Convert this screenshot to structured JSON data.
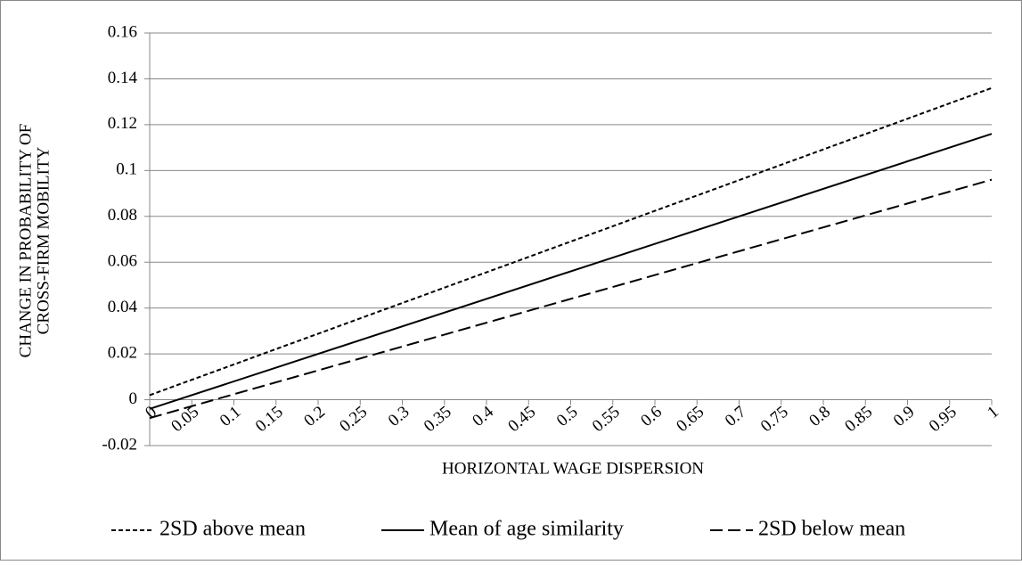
{
  "chart_data": {
    "type": "line",
    "xlabel": "HORIZONTAL WAGE DISPERSION",
    "ylabel": [
      "CHANGE IN PROBABILITY OF",
      "CROSS-FIRM MOBILITY"
    ],
    "x": [
      0,
      1
    ],
    "series": [
      {
        "name": "2SD above mean",
        "color": "#000000",
        "style": "dotted",
        "values": [
          0.002,
          0.136
        ]
      },
      {
        "name": "Mean of age similarity",
        "color": "#000000",
        "style": "solid",
        "values": [
          -0.004,
          0.116
        ]
      },
      {
        "name": "2SD below mean",
        "color": "#000000",
        "style": "dashed",
        "values": [
          -0.008,
          0.096
        ]
      }
    ],
    "xlim": [
      0,
      1
    ],
    "xticks": [
      0,
      0.05,
      0.1,
      0.15,
      0.2,
      0.25,
      0.3,
      0.35,
      0.4,
      0.45,
      0.5,
      0.55,
      0.6,
      0.65,
      0.7,
      0.75,
      0.8,
      0.85,
      0.9,
      0.95,
      1
    ],
    "ylim": [
      -0.02,
      0.16
    ],
    "yticks": [
      -0.02,
      0,
      0.02,
      0.04,
      0.06,
      0.08,
      0.1,
      0.12,
      0.14,
      0.16
    ],
    "grid": true,
    "legend": "bottom"
  }
}
